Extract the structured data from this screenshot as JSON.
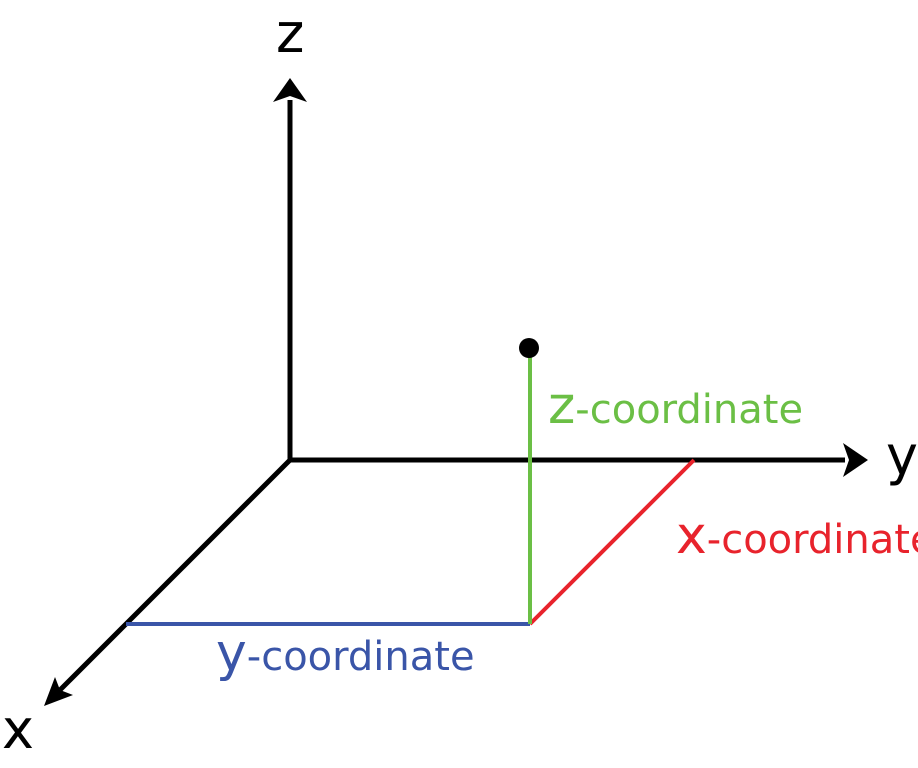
{
  "axes": {
    "z": {
      "label": "z"
    },
    "y": {
      "label": "y"
    },
    "x": {
      "label": "x"
    }
  },
  "coordinates": {
    "z": {
      "letter": "z",
      "suffix": "-coordinate",
      "color": "#6bbf45"
    },
    "x": {
      "letter": "x",
      "suffix": "-coordinate",
      "color": "#e8232c"
    },
    "y": {
      "letter": "y",
      "suffix": "-coordinate",
      "color": "#3a55a8"
    }
  },
  "colors": {
    "axis": "#000000",
    "point": "#000000"
  }
}
